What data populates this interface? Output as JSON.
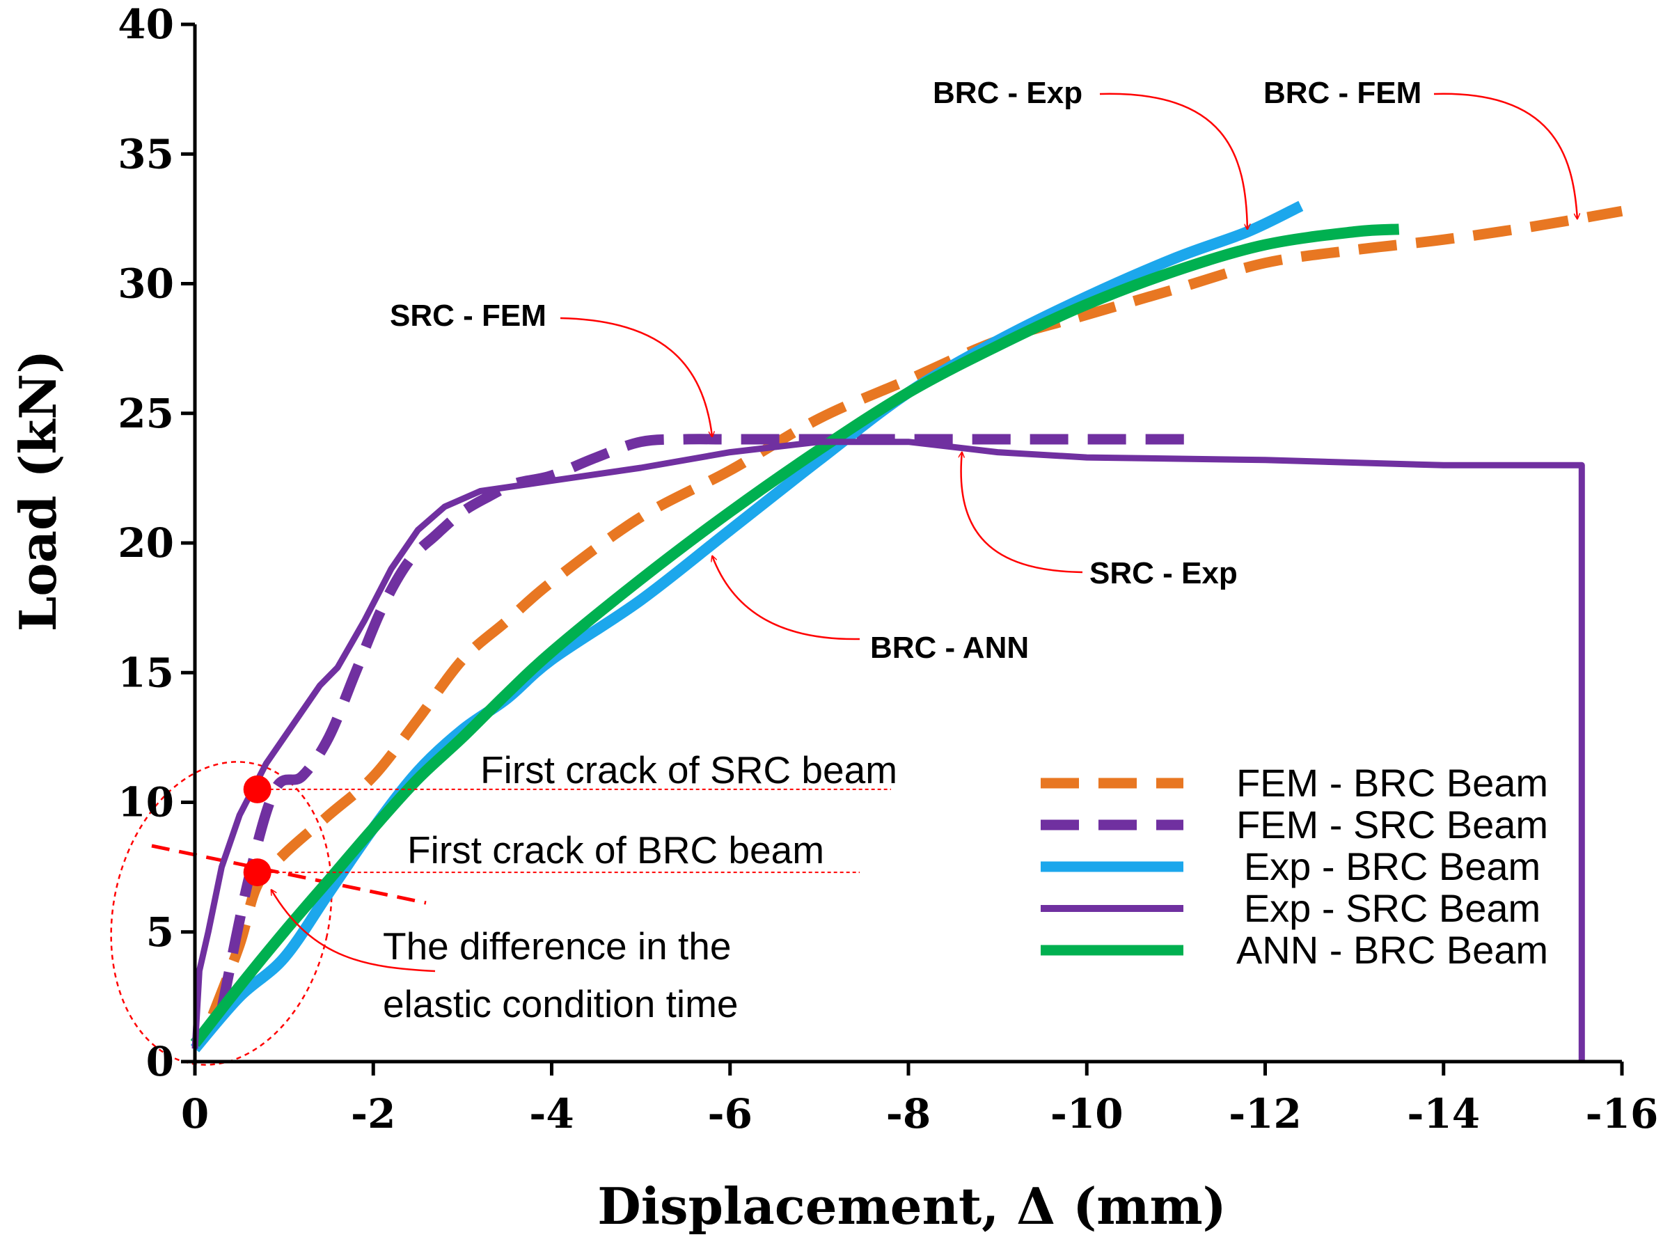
{
  "chart_data": {
    "type": "line",
    "title": "",
    "xlabel": "Displacement, Δ  (mm)",
    "ylabel": "Load  (kN)",
    "xlim": [
      0,
      -16
    ],
    "ylim": [
      0,
      40
    ],
    "x_ticks": [
      0,
      -2,
      -4,
      -6,
      -8,
      -10,
      -12,
      -14,
      -16
    ],
    "y_ticks": [
      0,
      5,
      10,
      15,
      20,
      25,
      30,
      35,
      40
    ],
    "x_tick_labels": [
      "0",
      "-2",
      "-4",
      "-6",
      "-8",
      "-10",
      "-12",
      "-14",
      "-16"
    ],
    "y_tick_labels": [
      "0",
      "5",
      "10",
      "15",
      "20",
      "25",
      "30",
      "35",
      "40"
    ],
    "grid": false,
    "legend_position": "bottom-right",
    "series": [
      {
        "name": "FEM - BRC Beam",
        "color": "#E87722",
        "style": "dashed",
        "x": [
          -0.2,
          -0.5,
          -0.7,
          -1.0,
          -1.5,
          -2.0,
          -2.5,
          -3.0,
          -3.5,
          -4.0,
          -5.0,
          -6.0,
          -7.0,
          -8.0,
          -9.0,
          -10.0,
          -11.0,
          -12.0,
          -13.0,
          -14.0,
          -15.0,
          -16.0
        ],
        "y": [
          1.8,
          4.5,
          6.8,
          8.0,
          9.5,
          11.0,
          13.2,
          15.5,
          17.0,
          18.5,
          21.0,
          22.8,
          24.8,
          26.3,
          27.8,
          28.8,
          29.8,
          30.8,
          31.3,
          31.7,
          32.2,
          32.8
        ]
      },
      {
        "name": "FEM - SRC Beam",
        "color": "#7030A0",
        "style": "dashed",
        "x": [
          -0.3,
          -0.6,
          -0.9,
          -1.2,
          -1.5,
          -1.8,
          -2.1,
          -2.4,
          -2.7,
          -3.0,
          -3.3,
          -3.6,
          -4.0,
          -4.5,
          -5.0,
          -5.5,
          -6.0,
          -7.0,
          -8.0,
          -9.0,
          -10.0,
          -11.2
        ],
        "y": [
          2.0,
          7.0,
          10.5,
          11.0,
          12.5,
          15.0,
          17.5,
          19.3,
          20.3,
          21.2,
          21.8,
          22.3,
          22.6,
          23.3,
          23.9,
          24.0,
          24.0,
          24.0,
          24.0,
          24.0,
          24.0,
          24.0
        ]
      },
      {
        "name": "Exp - BRC Beam",
        "color": "#1CA7EC",
        "style": "solid",
        "x": [
          0.0,
          -0.5,
          -1.0,
          -1.5,
          -2.0,
          -2.5,
          -3.0,
          -3.5,
          -4.0,
          -5.0,
          -6.0,
          -7.0,
          -8.0,
          -9.0,
          -10.0,
          -11.0,
          -11.8,
          -12.4
        ],
        "y": [
          0.5,
          2.5,
          4.0,
          6.5,
          9.0,
          11.2,
          12.8,
          14.0,
          15.5,
          17.8,
          20.5,
          23.2,
          25.8,
          27.8,
          29.5,
          31.0,
          32.0,
          33.0
        ]
      },
      {
        "name": "Exp -  SRC Beam",
        "color": "#7030A0",
        "style": "solid",
        "x": [
          0.0,
          -0.05,
          -0.15,
          -0.3,
          -0.5,
          -0.8,
          -1.0,
          -1.2,
          -1.4,
          -1.6,
          -1.9,
          -2.2,
          -2.5,
          -2.8,
          -3.2,
          -3.6,
          -4.0,
          -5.0,
          -6.0,
          -7.0,
          -8.0,
          -9.0,
          -10.0,
          -12.0,
          -14.0,
          -15.55,
          -15.55
        ],
        "y": [
          0.5,
          3.5,
          5.0,
          7.5,
          9.5,
          11.5,
          12.5,
          13.5,
          14.5,
          15.2,
          17.0,
          19.0,
          20.5,
          21.4,
          22.0,
          22.2,
          22.4,
          22.9,
          23.5,
          23.9,
          23.9,
          23.5,
          23.3,
          23.2,
          23.0,
          23.0,
          0.0
        ]
      },
      {
        "name": "ANN - BRC Beam",
        "color": "#00B050",
        "style": "solid",
        "x": [
          0.0,
          -0.5,
          -1.0,
          -1.5,
          -2.0,
          -2.5,
          -3.0,
          -3.5,
          -4.0,
          -5.0,
          -6.0,
          -7.0,
          -8.0,
          -9.0,
          -10.0,
          -11.0,
          -12.0,
          -13.0,
          -13.5
        ],
        "y": [
          0.7,
          2.9,
          5.0,
          7.0,
          9.0,
          10.9,
          12.5,
          14.2,
          15.8,
          18.6,
          21.2,
          23.6,
          25.8,
          27.6,
          29.2,
          30.5,
          31.5,
          32.0,
          32.1
        ]
      }
    ],
    "annotations": [
      {
        "text": "BRC - Exp",
        "points_to": [
          -11.8,
          32.1
        ]
      },
      {
        "text": "BRC - FEM",
        "points_to": [
          -15.5,
          32.5
        ]
      },
      {
        "text": "SRC - FEM",
        "points_to": [
          -5.8,
          24.1
        ]
      },
      {
        "text": "SRC - Exp",
        "points_to": [
          -8.6,
          23.5
        ]
      },
      {
        "text": "BRC - ANN",
        "points_to": [
          -5.8,
          19.5
        ]
      }
    ],
    "markers": [
      {
        "label": "First crack of SRC beam",
        "x": -0.7,
        "y": 10.5
      },
      {
        "label": "First crack of BRC beam",
        "x": -0.7,
        "y": 7.3
      }
    ],
    "note": {
      "lines": [
        "The difference in the",
        "elastic condition time"
      ]
    }
  }
}
